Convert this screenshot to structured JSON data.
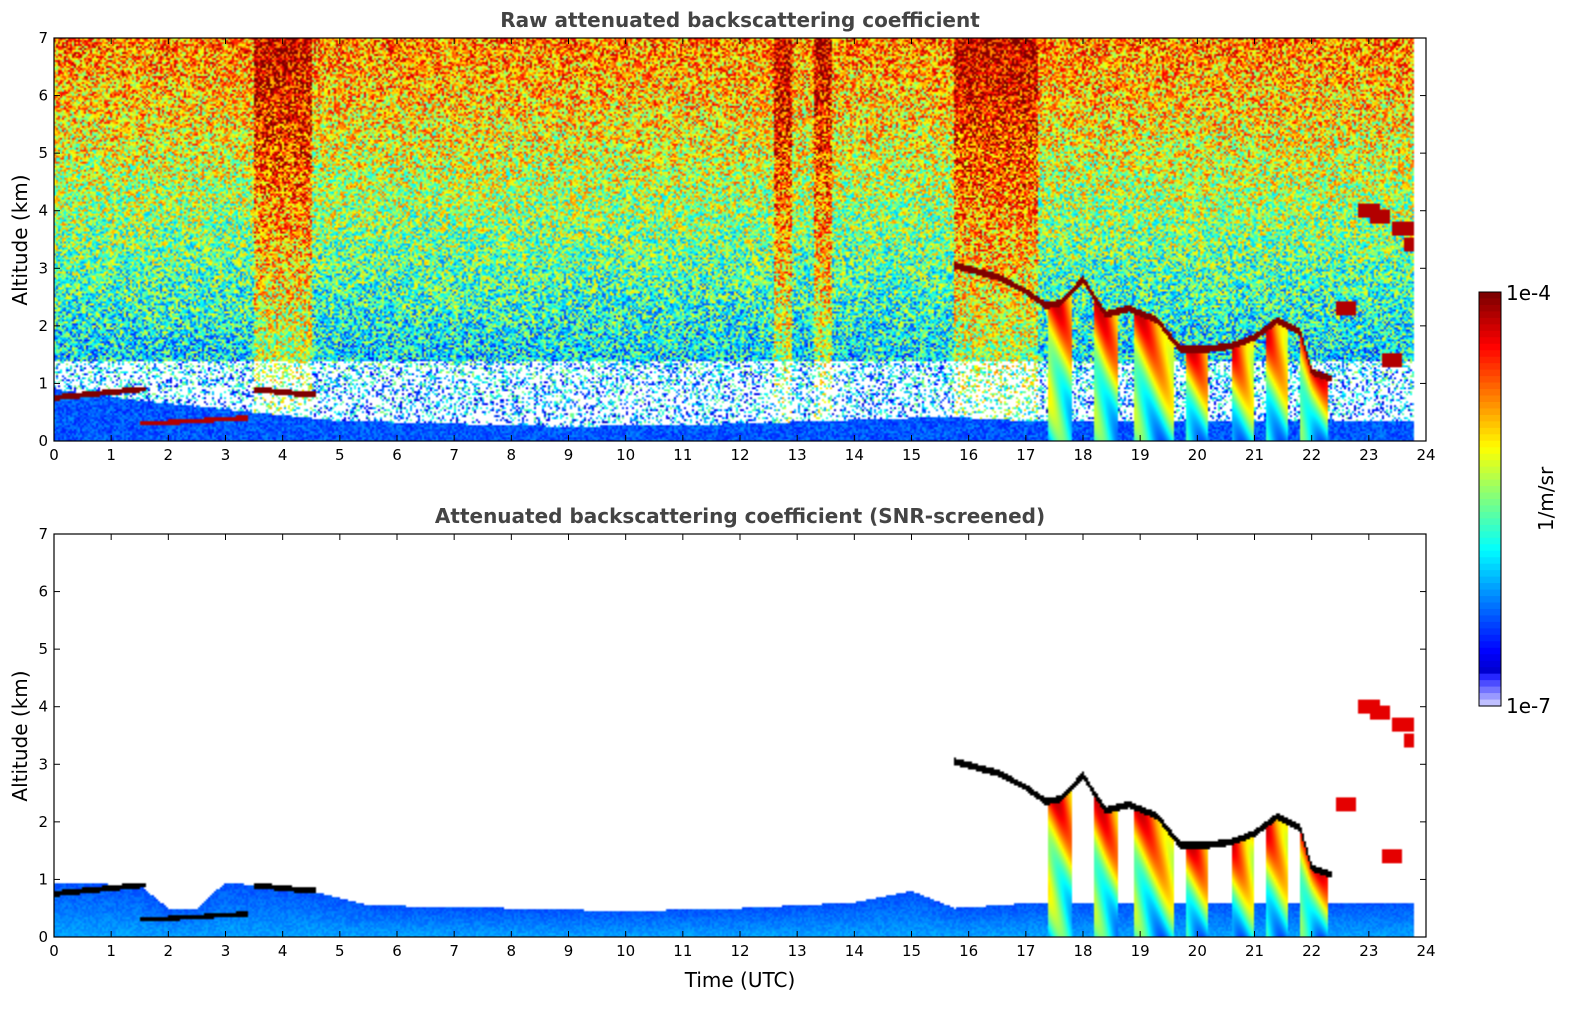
{
  "chart_data": [
    {
      "type": "heatmap",
      "title": "Raw attenuated backscattering coefficient",
      "xlabel": "",
      "ylabel": "Altitude (km)",
      "xlim": [
        0,
        24
      ],
      "ylim": [
        0,
        7
      ],
      "xticks": [
        "0",
        "1",
        "2",
        "3",
        "4",
        "5",
        "6",
        "7",
        "8",
        "9",
        "10",
        "11",
        "12",
        "13",
        "14",
        "15",
        "16",
        "17",
        "18",
        "19",
        "20",
        "21",
        "22",
        "23",
        "24"
      ],
      "yticks": [
        "0",
        "1",
        "2",
        "3",
        "4",
        "5",
        "6",
        "7"
      ],
      "data_end_time": 23.8,
      "features": {
        "boundary_layer_top_km": [
          [
            0,
            0.9
          ],
          [
            1.5,
            0.7
          ],
          [
            5,
            0.35
          ],
          [
            9,
            0.25
          ],
          [
            12,
            0.3
          ],
          [
            15,
            0.4
          ],
          [
            16,
            0.4
          ],
          [
            17,
            0.35
          ]
        ],
        "aerosol_layer": [
          [
            0,
            0.75
          ],
          [
            0.5,
            0.8
          ],
          [
            1.5,
            0.9
          ]
        ],
        "elevated_layer": [
          [
            3.5,
            0.9
          ],
          [
            4.0,
            0.85
          ],
          [
            4.5,
            0.8
          ]
        ],
        "low_layer": [
          [
            1.5,
            0.3
          ],
          [
            2.5,
            0.35
          ],
          [
            3.3,
            0.4
          ]
        ],
        "cloud_top": [
          [
            15.75,
            3.05
          ],
          [
            16.5,
            2.85
          ],
          [
            17.0,
            2.6
          ],
          [
            17.35,
            2.35
          ],
          [
            17.6,
            2.4
          ],
          [
            18.0,
            2.8
          ],
          [
            18.4,
            2.2
          ],
          [
            18.8,
            2.3
          ],
          [
            19.3,
            2.1
          ],
          [
            19.7,
            1.6
          ],
          [
            20.2,
            1.6
          ],
          [
            20.6,
            1.65
          ],
          [
            21.0,
            1.8
          ],
          [
            21.4,
            2.1
          ],
          [
            21.8,
            1.9
          ],
          [
            22.0,
            1.2
          ],
          [
            22.3,
            1.1
          ]
        ],
        "convective_columns": [
          [
            17.4,
            17.8
          ],
          [
            18.2,
            18.6
          ],
          [
            18.9,
            19.6
          ],
          [
            19.8,
            20.2
          ],
          [
            20.6,
            21.0
          ],
          [
            21.2,
            21.6
          ],
          [
            21.8,
            22.3
          ]
        ],
        "high_layers": [
          [
            22.6,
            2.3
          ],
          [
            23.0,
            4.0
          ],
          [
            23.2,
            3.9
          ],
          [
            23.6,
            3.7
          ],
          [
            23.8,
            3.4
          ],
          [
            23.4,
            1.4
          ]
        ],
        "noisy_columns": [
          [
            3.5,
            4.5
          ],
          [
            12.6,
            12.9
          ],
          [
            13.3,
            13.6
          ],
          [
            15.75,
            17.2
          ]
        ]
      }
    },
    {
      "type": "heatmap",
      "title": "Attenuated backscattering coefficient (SNR-screened)",
      "xlabel": "Time (UTC)",
      "ylabel": "Altitude (km)",
      "xlim": [
        0,
        24
      ],
      "ylim": [
        0,
        7
      ],
      "xticks": [
        "0",
        "1",
        "2",
        "3",
        "4",
        "5",
        "6",
        "7",
        "8",
        "9",
        "10",
        "11",
        "12",
        "13",
        "14",
        "15",
        "16",
        "17",
        "18",
        "19",
        "20",
        "21",
        "22",
        "23",
        "24"
      ],
      "yticks": [
        "0",
        "1",
        "2",
        "3",
        "4",
        "5",
        "6",
        "7"
      ],
      "screened_bl_top_km": [
        [
          0,
          0.95
        ],
        [
          1.5,
          0.9
        ],
        [
          2.0,
          0.5
        ],
        [
          2.5,
          0.5
        ],
        [
          3.0,
          0.95
        ],
        [
          4.5,
          0.8
        ],
        [
          5.5,
          0.55
        ],
        [
          8,
          0.5
        ],
        [
          10,
          0.45
        ],
        [
          12,
          0.5
        ],
        [
          14,
          0.6
        ],
        [
          15,
          0.8
        ],
        [
          15.75,
          0.5
        ],
        [
          17.2,
          0.6
        ]
      ]
    }
  ],
  "colorbar": {
    "label": "1/m/sr",
    "max_label": "1e-4",
    "min_label": "1e-7",
    "colormap": "jet",
    "scale": "log",
    "range": [
      1e-07,
      0.0001
    ]
  }
}
